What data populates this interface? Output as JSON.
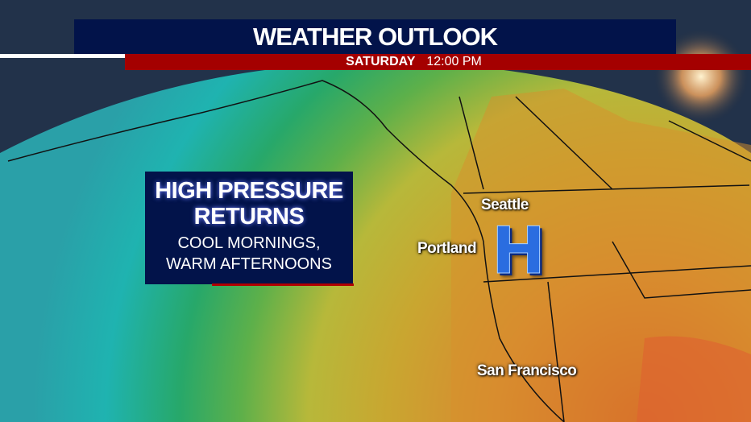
{
  "header": {
    "title": "WEATHER OUTLOOK",
    "day": "SATURDAY",
    "time": "12:00 PM"
  },
  "info_box": {
    "headline_1": "HIGH PRESSURE",
    "headline_2": "RETURNS",
    "detail_1": "COOL MORNINGS,",
    "detail_2": "WARM AFTERNOONS"
  },
  "map": {
    "cities": [
      "Seattle",
      "Portland",
      "San Francisco"
    ],
    "pressure_symbol": "H",
    "colors": {
      "cool": "#1fb3b0",
      "mild": "#3aa84a",
      "warm": "#c8b020",
      "hot": "#d87a2a",
      "banner_blue": "#02134a",
      "banner_red": "#a40000"
    }
  }
}
